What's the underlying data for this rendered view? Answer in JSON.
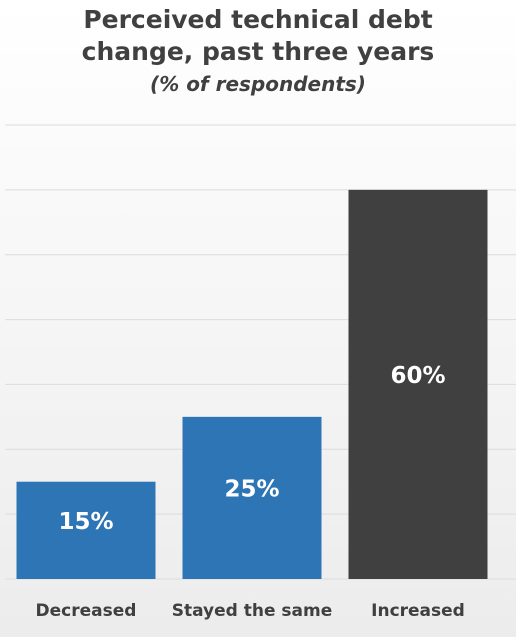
{
  "chart_data": {
    "type": "bar",
    "title": "Perceived technical debt change, past three years",
    "subtitle": "(% of respondents)",
    "categories": [
      "Decreased",
      "Stayed the same",
      "Increased"
    ],
    "values": [
      15,
      25,
      60
    ],
    "value_labels": [
      "15%",
      "25%",
      "60%"
    ],
    "colors": [
      "#2e75b6",
      "#2e75b6",
      "#404040"
    ],
    "ylim": [
      0,
      70
    ],
    "yticks": [
      0,
      10,
      20,
      30,
      40,
      50,
      60,
      70
    ],
    "grid": true
  }
}
